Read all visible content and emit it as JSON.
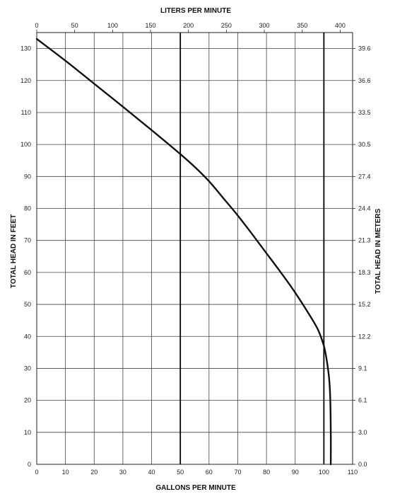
{
  "chart_data": {
    "type": "line",
    "title": "",
    "xlabel": "GALLONS PER MINUTE",
    "x2label": "LITERS PER MINUTE",
    "ylabel": "TOTAL HEAD IN FEET",
    "y2label": "TOTAL HEAD IN METERS",
    "xlim": [
      0,
      110
    ],
    "ylim": [
      0,
      135
    ],
    "x2lim": [
      0,
      416.4
    ],
    "grid": true,
    "legend": "none",
    "x_ticks": [
      "0",
      "10",
      "20",
      "30",
      "40",
      "50",
      "60",
      "70",
      "80",
      "90",
      "100",
      "110"
    ],
    "y_ticks": [
      "0",
      "10",
      "20",
      "30",
      "40",
      "50",
      "60",
      "70",
      "80",
      "90",
      "100",
      "110",
      "120",
      "130"
    ],
    "x2_ticks": [
      "0",
      "50",
      "100",
      "150",
      "200",
      "250",
      "300",
      "350",
      "400"
    ],
    "y2_ticks": [
      "0.0",
      "3.0",
      "6.1",
      "9.1",
      "12.2",
      "15.2",
      "18.3",
      "21.3",
      "24.4",
      "27.4",
      "30.5",
      "33.5",
      "36.6",
      "39.6"
    ],
    "vertical_markers": [
      50,
      100
    ],
    "series": [
      {
        "x": [
          0,
          10,
          20,
          30,
          40,
          50,
          55,
          60,
          65,
          70,
          75,
          80,
          85,
          90,
          95,
          98,
          100,
          101,
          101.8,
          102.2,
          102.4,
          102.4
        ],
        "y": [
          133,
          126.2,
          119,
          111.8,
          104.5,
          97,
          93,
          88.5,
          83.2,
          77.8,
          72,
          66,
          60,
          53.7,
          46.7,
          42,
          37,
          32.5,
          27,
          21,
          10,
          0
        ]
      }
    ],
    "line_color": "#111111",
    "grid_color": "#444444",
    "marker_color": "#000000"
  }
}
